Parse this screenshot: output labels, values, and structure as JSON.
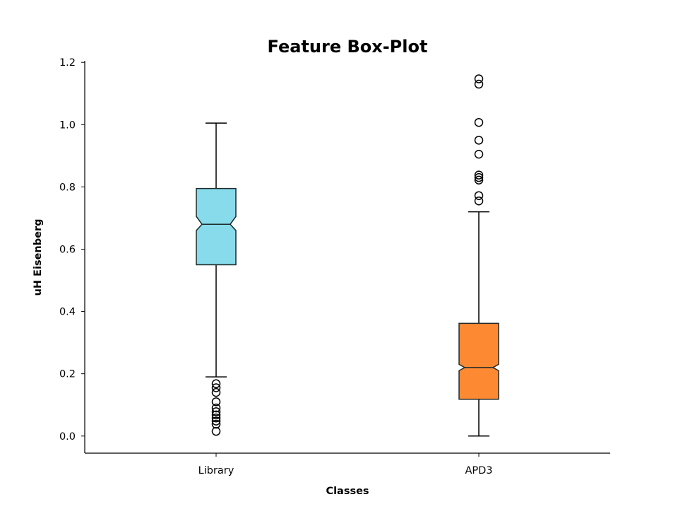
{
  "chart_data": {
    "type": "box",
    "title": "Feature Box-Plot",
    "xlabel": "Classes",
    "ylabel": "uH Eisenberg",
    "ylim": [
      -0.055,
      1.205
    ],
    "yticks": [
      "0.0",
      "0.2",
      "0.4",
      "0.6",
      "0.8",
      "1.0",
      "1.2"
    ],
    "notched": true,
    "grid": false,
    "series": [
      {
        "name": "Library",
        "color": "#87dbeb",
        "whisker_low": 0.19,
        "q1": 0.55,
        "median": 0.68,
        "q3": 0.795,
        "whisker_high": 1.005,
        "notch_low": 0.66,
        "notch_high": 0.705,
        "outliers": [
          0.168,
          0.155,
          0.14,
          0.11,
          0.09,
          0.078,
          0.068,
          0.058,
          0.048,
          0.038,
          0.015
        ]
      },
      {
        "name": "APD3",
        "color": "#fd8933",
        "whisker_low": 0.0,
        "q1": 0.118,
        "median": 0.22,
        "q3": 0.362,
        "whisker_high": 0.72,
        "notch_low": 0.21,
        "notch_high": 0.23,
        "outliers": [
          0.755,
          0.772,
          0.822,
          0.83,
          0.838,
          0.905,
          0.95,
          1.007,
          1.13,
          1.147
        ]
      }
    ]
  }
}
